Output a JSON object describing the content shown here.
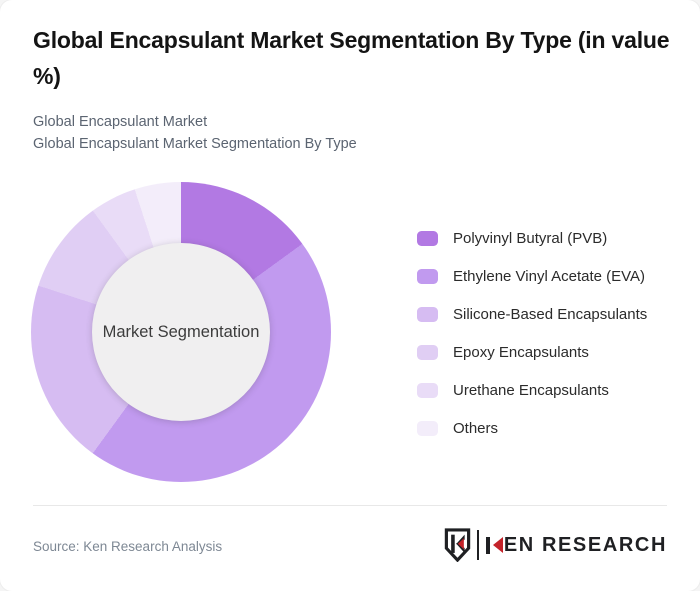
{
  "header": {
    "title": "Global Encapsulant Market Segmentation By Type (in value %)",
    "subtitle_line1": "Global Encapsulant Market",
    "subtitle_line2": "Global Encapsulant Market Segmentation By Type"
  },
  "chart_data": {
    "type": "pie",
    "style": "donut",
    "title": "Global Encapsulant Market Segmentation By Type (in value %)",
    "center_label": "Market Segmentation",
    "unit": "value %",
    "legend_position": "right",
    "categories": [
      "Polyvinyl Butyral (PVB)",
      "Ethylene Vinyl Acetate (EVA)",
      "Silicone-Based Encapsulants",
      "Epoxy Encapsulants",
      "Urethane Encapsulants",
      "Others"
    ],
    "values": [
      15,
      45,
      20,
      10,
      5,
      5
    ],
    "colors": [
      "#b279e3",
      "#c19aef",
      "#d6bcf2",
      "#e0cef4",
      "#e9dcf7",
      "#f3edfa"
    ],
    "hole_color": "#f0eff0",
    "start_angle_deg": 0
  },
  "footer": {
    "source": "Source: Ken Research Analysis",
    "logo_wordmark": "KEN RESEARCH",
    "logo_red": "#c4232a",
    "logo_dark": "#1f2023"
  }
}
